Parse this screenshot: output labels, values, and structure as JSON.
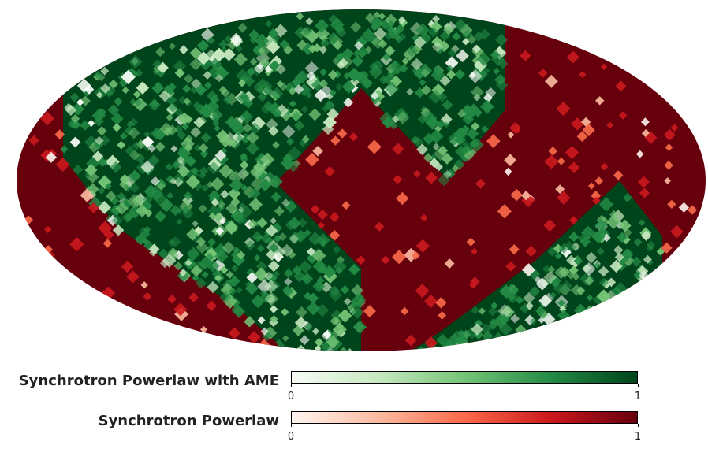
{
  "map": {
    "projection": "mollweide",
    "colors": {
      "synchrotron_powerlaw_with_ame": "#00441b",
      "synchrotron_powerlaw": "#67000d"
    }
  },
  "legend": {
    "items": [
      {
        "label": "Synchrotron Powerlaw with AME",
        "min_label": "0",
        "max_label": "1",
        "colormap": "Greens",
        "gradient": [
          "#f7fcf5",
          "#c7e9c0",
          "#74c476",
          "#238b45",
          "#00441b"
        ]
      },
      {
        "label": "Synchrotron Powerlaw",
        "min_label": "0",
        "max_label": "1",
        "colormap": "Reds",
        "gradient": [
          "#fff5f0",
          "#fcbba1",
          "#fb6a4a",
          "#cb181d",
          "#67000d"
        ]
      }
    ]
  }
}
